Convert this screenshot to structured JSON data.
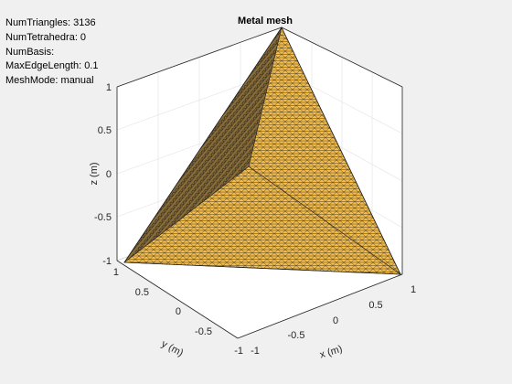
{
  "title": "Metal mesh",
  "info": {
    "num_triangles": "NumTriangles: 3136",
    "num_tetrahedra": "NumTetrahedra: 0",
    "num_basis": "NumBasis:",
    "max_edge_length": "MaxEdgeLength: 0.1",
    "mesh_mode": "MeshMode: manual"
  },
  "axes": {
    "xlabel": "x (m)",
    "ylabel": "y (m)",
    "zlabel": "z (m)",
    "x_ticks": [
      "-1",
      "-0.5",
      "0",
      "0.5",
      "1"
    ],
    "y_ticks": [
      "-1",
      "-0.5",
      "0",
      "0.5",
      "1"
    ],
    "z_ticks": [
      "-1",
      "-0.5",
      "0",
      "0.5",
      "1"
    ]
  },
  "colors": {
    "face": "#f5be4c",
    "face_dark": "#cf9d3a",
    "edge": "#2a2a2a",
    "background": "#f0f0f0",
    "axes_bg": "#ffffff"
  }
}
